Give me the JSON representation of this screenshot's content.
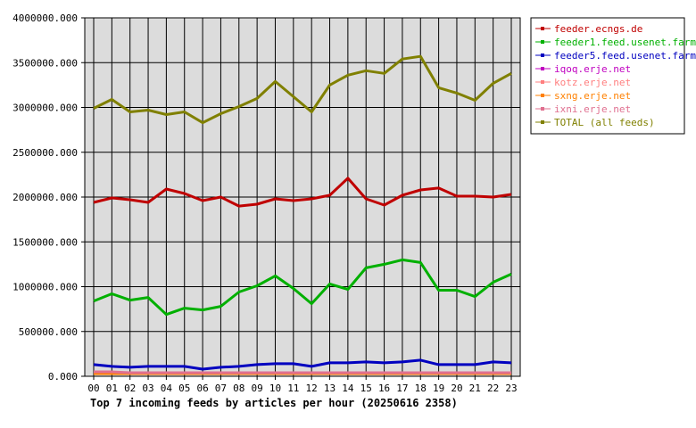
{
  "chart_data": {
    "type": "line",
    "title": "Top 7 incoming feeds by articles per hour (20250616 2358)",
    "xlabel": "",
    "ylabel": "",
    "ylim": [
      0,
      4000000
    ],
    "y_ticks": [
      "0.000",
      "500000.000",
      "1000000.000",
      "1500000.000",
      "2000000.000",
      "2500000.000",
      "3000000.000",
      "3500000.000",
      "4000000.000"
    ],
    "y_tick_values": [
      0,
      500000,
      1000000,
      1500000,
      2000000,
      2500000,
      3000000,
      3500000,
      4000000
    ],
    "categories": [
      "00",
      "01",
      "02",
      "03",
      "04",
      "05",
      "06",
      "07",
      "08",
      "09",
      "10",
      "11",
      "12",
      "13",
      "14",
      "15",
      "16",
      "17",
      "18",
      "19",
      "20",
      "21",
      "22",
      "23"
    ],
    "grid": true,
    "legend_position": "right",
    "series": [
      {
        "name": "feeder.ecngs.de",
        "color": "#c00000",
        "values": [
          1940000,
          1990000,
          1970000,
          1940000,
          2090000,
          2040000,
          1960000,
          2000000,
          1900000,
          1920000,
          1980000,
          1960000,
          1980000,
          2020000,
          2210000,
          1980000,
          1910000,
          2020000,
          2080000,
          2100000,
          2010000,
          2010000,
          2000000,
          2030000
        ]
      },
      {
        "name": "feeder1.feed.usenet.farm",
        "color": "#00b000",
        "values": [
          840000,
          920000,
          850000,
          880000,
          690000,
          760000,
          740000,
          780000,
          940000,
          1010000,
          1120000,
          980000,
          810000,
          1030000,
          970000,
          1210000,
          1250000,
          1300000,
          1270000,
          960000,
          960000,
          890000,
          1050000,
          1140000
        ]
      },
      {
        "name": "feeder5.feed.usenet.farm",
        "color": "#0000c0",
        "values": [
          130000,
          110000,
          100000,
          110000,
          110000,
          110000,
          80000,
          100000,
          110000,
          130000,
          140000,
          140000,
          110000,
          150000,
          150000,
          160000,
          150000,
          160000,
          180000,
          130000,
          130000,
          130000,
          160000,
          150000
        ]
      },
      {
        "name": "iqoq.erje.net",
        "color": "#c000c0",
        "values": [
          30000,
          30000,
          30000,
          30000,
          30000,
          30000,
          30000,
          30000,
          30000,
          30000,
          30000,
          30000,
          30000,
          30000,
          30000,
          30000,
          30000,
          30000,
          30000,
          30000,
          30000,
          30000,
          30000,
          30000
        ]
      },
      {
        "name": "kotz.erje.net",
        "color": "#ff7f7f",
        "values": [
          40000,
          40000,
          40000,
          40000,
          40000,
          40000,
          40000,
          40000,
          40000,
          40000,
          40000,
          40000,
          40000,
          40000,
          40000,
          40000,
          40000,
          40000,
          40000,
          40000,
          40000,
          40000,
          40000,
          40000
        ]
      },
      {
        "name": "sxng.erje.net",
        "color": "#ff8000",
        "values": [
          30000,
          30000,
          30000,
          30000,
          30000,
          30000,
          30000,
          30000,
          30000,
          30000,
          30000,
          30000,
          30000,
          30000,
          30000,
          30000,
          30000,
          30000,
          30000,
          30000,
          30000,
          30000,
          30000,
          30000
        ]
      },
      {
        "name": "ixni.erje.net",
        "color": "#e07090",
        "values": [
          50000,
          50000,
          40000,
          40000,
          40000,
          40000,
          40000,
          40000,
          40000,
          40000,
          40000,
          40000,
          40000,
          40000,
          40000,
          40000,
          40000,
          40000,
          40000,
          40000,
          40000,
          40000,
          40000,
          40000
        ]
      },
      {
        "name": "TOTAL (all feeds)",
        "color": "#808000",
        "values": [
          2990000,
          3090000,
          2950000,
          2970000,
          2920000,
          2950000,
          2830000,
          2930000,
          3010000,
          3100000,
          3290000,
          3120000,
          2950000,
          3250000,
          3360000,
          3410000,
          3380000,
          3540000,
          3570000,
          3220000,
          3160000,
          3080000,
          3270000,
          3380000
        ]
      }
    ]
  }
}
